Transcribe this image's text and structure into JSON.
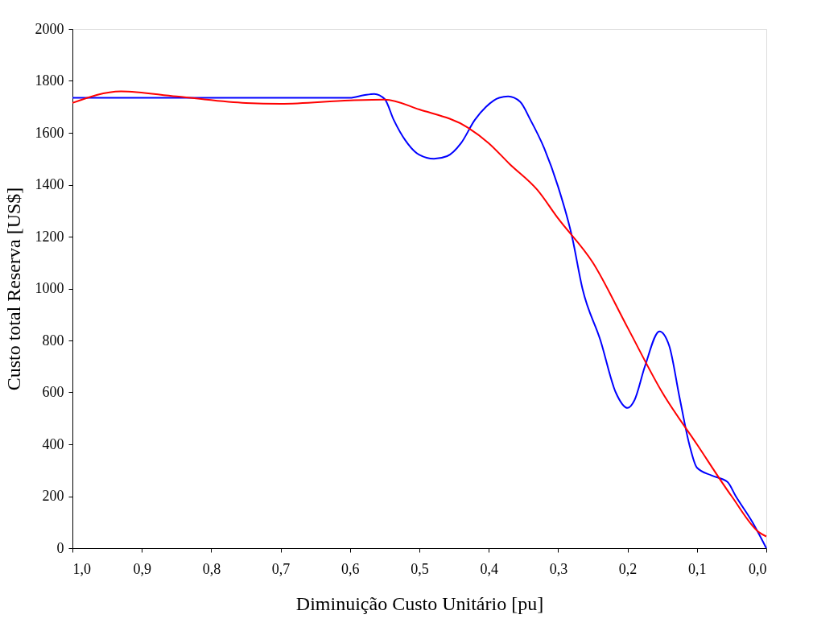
{
  "chart_data": {
    "type": "line",
    "xlabel": "Diminuição Custo Unitário [pu]",
    "ylabel": "Custo total Reserva [US$]",
    "xlim": [
      1.0,
      0.0
    ],
    "ylim": [
      0,
      2000
    ],
    "xticks": [
      {
        "value": 1.0,
        "label": "1,0"
      },
      {
        "value": 0.9,
        "label": "0,9"
      },
      {
        "value": 0.8,
        "label": "0,8"
      },
      {
        "value": 0.7,
        "label": "0,7"
      },
      {
        "value": 0.6,
        "label": "0,6"
      },
      {
        "value": 0.5,
        "label": "0,5"
      },
      {
        "value": 0.4,
        "label": "0,4"
      },
      {
        "value": 0.3,
        "label": "0,3"
      },
      {
        "value": 0.2,
        "label": "0,2"
      },
      {
        "value": 0.1,
        "label": "0,1"
      },
      {
        "value": 0.0,
        "label": "0,0"
      }
    ],
    "yticks": [
      0,
      200,
      400,
      600,
      800,
      1000,
      1200,
      1400,
      1600,
      1800,
      2000
    ],
    "grid": false,
    "legend": false,
    "marker": "none",
    "line_style": "solid",
    "series": [
      {
        "color": "#0000ff",
        "x": [
          1.0,
          0.9,
          0.8,
          0.7,
          0.6,
          0.58,
          0.565,
          0.55,
          0.537,
          0.52,
          0.5,
          0.479,
          0.46,
          0.44,
          0.42,
          0.404,
          0.385,
          0.372,
          0.355,
          0.34,
          0.32,
          0.3,
          0.28,
          0.265,
          0.239,
          0.217,
          0.2,
          0.19,
          0.175,
          0.154,
          0.14,
          0.125,
          0.111,
          0.1,
          0.079,
          0.056,
          0.044,
          0.02,
          0.0
        ],
        "values": [
          1735,
          1735,
          1735,
          1735,
          1735,
          1745,
          1750,
          1730,
          1650,
          1570,
          1515,
          1500,
          1510,
          1560,
          1650,
          1700,
          1735,
          1740,
          1720,
          1650,
          1540,
          1392,
          1200,
          1000,
          800,
          600,
          540,
          570,
          700,
          835,
          780,
          580,
          400,
          310,
          280,
          255,
          200,
          100,
          0
        ]
      },
      {
        "color": "#ff0000",
        "x": [
          1.0,
          0.93,
          0.85,
          0.75,
          0.7,
          0.6,
          0.55,
          0.5,
          0.43,
          0.4,
          0.37,
          0.33,
          0.3,
          0.25,
          0.2,
          0.15,
          0.1,
          0.05,
          0.01,
          0.0
        ],
        "values": [
          1715,
          1760,
          1740,
          1715,
          1712,
          1725,
          1728,
          1690,
          1620,
          1560,
          1480,
          1380,
          1270,
          1100,
          850,
          600,
          400,
          200,
          60,
          45
        ]
      }
    ]
  }
}
